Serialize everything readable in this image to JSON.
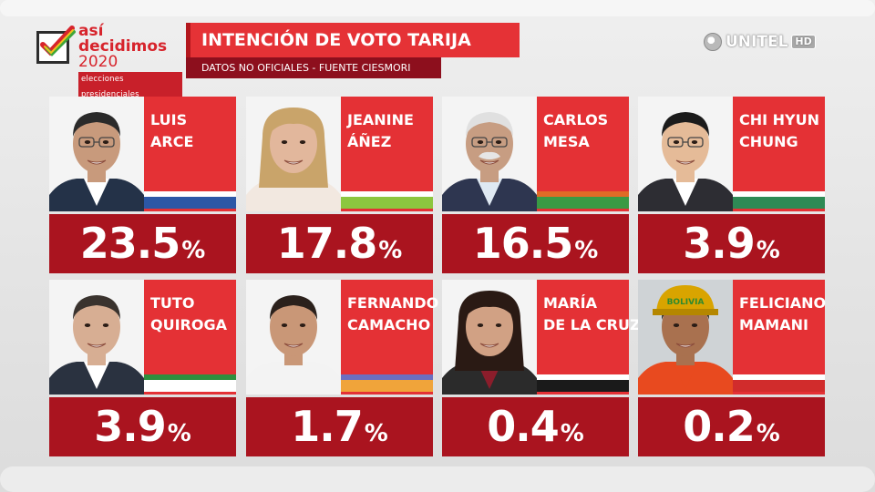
{
  "header": {
    "logo": {
      "line1": "así",
      "line2": "decidimos",
      "line3": "2020",
      "sub": "elecciones presidenciales"
    },
    "title": "INTENCIÓN DE VOTO TARIJA",
    "subtitle": "DATOS NO OFICIALES - FUENTE CIESMORI",
    "brand": {
      "name": "UNITEL",
      "badge": "HD"
    }
  },
  "chart_data": {
    "type": "bar",
    "categories": [
      "LUIS ARCE",
      "JEANINE ÁÑEZ",
      "CARLOS MESA",
      "CHI HYUN CHUNG",
      "TUTO QUIROGA",
      "FERNANDO CAMACHO",
      "MARÍA DE LA CRUZ",
      "FELICIANO MAMANI"
    ],
    "values": [
      23.5,
      17.8,
      16.5,
      3.9,
      3.9,
      1.7,
      0.4,
      0.2
    ],
    "unit": "%",
    "title": "INTENCIÓN DE VOTO TARIJA",
    "subtitle": "DATOS NO OFICIALES - FUENTE CIESMORI"
  },
  "candidates": [
    {
      "name_line1": "LUIS",
      "name_line2": "ARCE",
      "value": "23.5",
      "pct": "%",
      "flag_colors": [
        "#ffffff",
        "#2c57a6"
      ],
      "skin": "#c89a7c",
      "hair": "#2a2a2a",
      "suit": "#243248",
      "shirt": "#ffffff"
    },
    {
      "name_line1": "JEANINE",
      "name_line2": "ÁÑEZ",
      "value": "17.8",
      "pct": "%",
      "flag_colors": [
        "#ffffff",
        "#8cc63f"
      ],
      "skin": "#e2b79c",
      "hair": "#c9a46a",
      "suit": "#f2e8e0",
      "shirt": "#f2e8e0"
    },
    {
      "name_line1": "CARLOS",
      "name_line2": "MESA",
      "value": "16.5",
      "pct": "%",
      "flag_colors": [
        "#e06b27",
        "#3a9a44"
      ],
      "skin": "#c79d82",
      "hair": "#e0e0e0",
      "suit": "#2e3650",
      "shirt": "#dfe9f2"
    },
    {
      "name_line1": "CHI HYUN",
      "name_line2": "CHUNG",
      "value": "3.9",
      "pct": "%",
      "flag_colors": [
        "#ffffff",
        "#2e8a55"
      ],
      "skin": "#e5bb98",
      "hair": "#1b1b1b",
      "suit": "#2d2d33",
      "shirt": "#ffffff"
    },
    {
      "name_line1": "TUTO",
      "name_line2": "QUIROGA",
      "value": "3.9",
      "pct": "%",
      "flag_colors": [
        "#2f8f3e",
        "#ffffff"
      ],
      "skin": "#d7ae93",
      "hair": "#3a332e",
      "suit": "#2a3240",
      "shirt": "#ffffff"
    },
    {
      "name_line1": "FERNANDO",
      "name_line2": "CAMACHO",
      "value": "1.7",
      "pct": "%",
      "flag_colors": [
        "#6c6fc0",
        "#f0a43a"
      ],
      "skin": "#c99777",
      "hair": "#2b211c",
      "suit": "#f3f3f3",
      "shirt": "#f3f3f3"
    },
    {
      "name_line1": "MARÍA",
      "name_line2": "DE LA CRUZ",
      "value": "0.4",
      "pct": "%",
      "flag_colors": [
        "#ffffff",
        "#1a1a1a"
      ],
      "skin": "#d1a184",
      "hair": "#2a1a14",
      "suit": "#2b2b2b",
      "shirt": "#8b1d2b"
    },
    {
      "name_line1": "FELICIANO",
      "name_line2": "MAMANI",
      "value": "0.2",
      "pct": "%",
      "flag_colors": [
        "#ffffff",
        "#d12c2c"
      ],
      "skin": "#a9714f",
      "hair": "#1a1a1a",
      "suit": "#e84a1f",
      "shirt": "#e84a1f",
      "helmet": "BOLIVIA"
    }
  ]
}
